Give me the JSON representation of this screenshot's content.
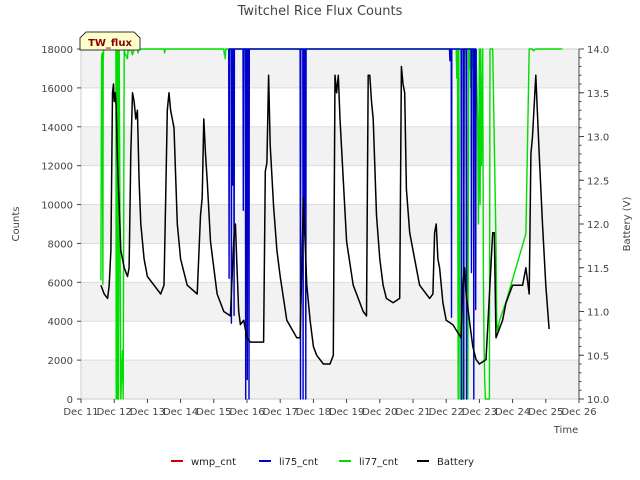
{
  "chart_data": {
    "type": "line",
    "title": "Twitchel Rice Flux Counts",
    "xlabel": "Time",
    "ylabel": "Counts",
    "y2label": "Battery (V)",
    "ylim": [
      0,
      18000
    ],
    "y2lim": [
      10.0,
      14.0
    ],
    "xlim": [
      11,
      26
    ],
    "x_ticks": [
      11,
      12,
      13,
      14,
      15,
      16,
      17,
      18,
      19,
      20,
      21,
      22,
      23,
      24,
      25,
      26
    ],
    "x_tick_labels": [
      "Dec 11",
      "Dec 12",
      "Dec 13",
      "Dec 14",
      "Dec 15",
      "Dec 16",
      "Dec 17",
      "Dec 18",
      "Dec 19",
      "Dec 20",
      "Dec 21",
      "Dec 22",
      "Dec 23",
      "Dec 24",
      "Dec 25",
      "Dec 26"
    ],
    "y_ticks": [
      0,
      2000,
      4000,
      6000,
      8000,
      10000,
      12000,
      14000,
      16000,
      18000
    ],
    "y2_ticks": [
      10.0,
      10.5,
      11.0,
      11.5,
      12.0,
      12.5,
      13.0,
      13.5,
      14.0
    ],
    "y2_tick_labels": [
      "10.0",
      "10.5",
      "11.0",
      "11.5",
      "12.0",
      "12.5",
      "13.0",
      "13.5",
      "14.0"
    ],
    "badge": "TW_flux",
    "legend_position": "bottom-center",
    "series": [
      {
        "name": "wmp_cnt",
        "color": "#cc0000",
        "axis": "left",
        "x": [],
        "y": []
      },
      {
        "name": "li75_cnt",
        "color": "#0000cc",
        "axis": "left",
        "x": [
          15.45,
          15.46,
          15.47,
          15.52,
          15.53,
          15.54,
          15.56,
          15.57,
          15.58,
          15.6,
          15.61,
          15.62,
          15.88,
          15.89,
          15.9,
          15.95,
          15.96,
          15.97,
          16.0,
          16.01,
          16.02,
          16.05,
          16.06,
          16.07,
          17.6,
          17.61,
          17.62,
          17.68,
          17.69,
          17.7,
          17.72,
          17.73,
          17.74,
          17.76,
          17.77,
          17.78,
          22.1,
          22.11,
          22.12,
          22.15,
          22.16,
          22.17,
          22.45,
          22.46,
          22.47,
          22.52,
          22.53,
          22.54,
          22.6,
          22.61,
          22.62,
          22.75,
          22.76,
          22.77,
          22.82,
          22.83,
          22.84,
          22.88,
          22.89,
          22.9
        ],
        "y": [
          18000,
          6200,
          18000,
          18000,
          3900,
          18000,
          18000,
          11000,
          18000,
          18000,
          4300,
          18000,
          18000,
          9700,
          18000,
          18000,
          0,
          18000,
          18000,
          1000,
          18000,
          18000,
          0,
          18000,
          18000,
          0,
          18000,
          18000,
          0,
          18000,
          18000,
          8500,
          18000,
          18000,
          0,
          18000,
          18000,
          17400,
          18000,
          18000,
          4200,
          18000,
          18000,
          0,
          18000,
          18000,
          0,
          18000,
          18000,
          0,
          18000,
          18000,
          6500,
          18000,
          18000,
          0,
          18000,
          18000,
          4600,
          18000
        ]
      },
      {
        "name": "li77_cnt",
        "color": "#00dd00",
        "axis": "left",
        "x": [
          11.6,
          11.61,
          11.62,
          11.64,
          11.66,
          11.67,
          11.68,
          11.7,
          11.72,
          12.0,
          12.05,
          12.06,
          12.08,
          12.1,
          12.12,
          12.13,
          12.15,
          12.2,
          12.25,
          12.27,
          12.3,
          12.32,
          12.4,
          12.42,
          12.44,
          12.5,
          12.55,
          12.6,
          12.7,
          12.72,
          12.73,
          12.8,
          13.5,
          13.52,
          13.53,
          13.6,
          15.3,
          15.32,
          15.33,
          15.34,
          15.36,
          15.4,
          22.3,
          22.32,
          22.34,
          22.36,
          22.38,
          22.42,
          22.5,
          22.55,
          22.6,
          22.65,
          22.68,
          22.7,
          22.72,
          22.74,
          22.76,
          22.78,
          22.8,
          22.85,
          22.88,
          22.9,
          22.95,
          22.97,
          23.0,
          23.02,
          23.04,
          23.06,
          23.1,
          23.12,
          23.14,
          23.16,
          23.18,
          23.3,
          23.32,
          23.4,
          23.5,
          23.52,
          23.55,
          23.6,
          23.8,
          24.4,
          24.5,
          24.6,
          24.62,
          24.7,
          24.8,
          25.5
        ],
        "y": [
          6100,
          13600,
          17600,
          17800,
          5900,
          17400,
          17900,
          18000,
          18000,
          18000,
          18000,
          0,
          18000,
          0,
          18000,
          0,
          18000,
          0,
          2500,
          0,
          18000,
          17800,
          17500,
          18000,
          17900,
          18000,
          17700,
          18000,
          18000,
          17800,
          18000,
          18000,
          18000,
          17800,
          18000,
          18000,
          18000,
          17700,
          17800,
          17500,
          18000,
          18000,
          18000,
          16500,
          18000,
          0,
          18000,
          0,
          0,
          18000,
          18000,
          0,
          18000,
          17000,
          18000,
          16000,
          18000,
          17000,
          18000,
          16000,
          18000,
          18000,
          14000,
          9000,
          18000,
          10000,
          18000,
          12000,
          18000,
          6000,
          3000,
          1000,
          0,
          0,
          18000,
          18000,
          8000,
          4000,
          3500,
          4000,
          5000,
          8500,
          18000,
          18000,
          17900,
          18000,
          18000,
          18000
        ]
      },
      {
        "name": "Battery",
        "color": "#000000",
        "axis": "right",
        "x": [
          11.6,
          11.7,
          11.8,
          11.85,
          11.9,
          11.95,
          11.98,
          12.0,
          12.03,
          12.06,
          12.1,
          12.15,
          12.2,
          12.3,
          12.4,
          12.45,
          12.5,
          12.55,
          12.6,
          12.65,
          12.7,
          12.75,
          12.8,
          12.9,
          13.0,
          13.2,
          13.4,
          13.5,
          13.55,
          13.6,
          13.65,
          13.7,
          13.75,
          13.8,
          13.9,
          14.0,
          14.2,
          14.5,
          14.6,
          14.65,
          14.7,
          14.75,
          14.8,
          14.9,
          15.0,
          15.1,
          15.3,
          15.5,
          15.6,
          15.65,
          15.7,
          15.75,
          15.8,
          15.9,
          16.0,
          16.1,
          16.2,
          16.5,
          16.55,
          16.6,
          16.65,
          16.7,
          16.8,
          16.9,
          17.0,
          17.2,
          17.5,
          17.6,
          17.65,
          17.7,
          17.75,
          17.8,
          17.9,
          18.0,
          18.1,
          18.3,
          18.5,
          18.6,
          18.65,
          18.7,
          18.75,
          18.8,
          18.9,
          19.0,
          19.2,
          19.5,
          19.6,
          19.65,
          19.7,
          19.75,
          19.8,
          19.9,
          20.0,
          20.1,
          20.2,
          20.4,
          20.6,
          20.65,
          20.7,
          20.75,
          20.8,
          20.9,
          21.0,
          21.2,
          21.5,
          21.6,
          21.65,
          21.7,
          21.75,
          21.8,
          21.9,
          22.0,
          22.2,
          22.45,
          22.5,
          22.55,
          22.6,
          22.7,
          22.8,
          22.9,
          23.0,
          23.2,
          23.4,
          23.45,
          23.5,
          23.6,
          23.7,
          23.8,
          24.0,
          24.3,
          24.4,
          24.5,
          24.55,
          24.6,
          24.7,
          24.8,
          24.9,
          25.0,
          25.1
        ],
        "y": [
          11.3,
          11.2,
          11.15,
          11.3,
          11.7,
          13.5,
          13.6,
          13.4,
          13.5,
          13.35,
          12.7,
          12.2,
          11.7,
          11.5,
          11.4,
          11.5,
          12.8,
          13.5,
          13.4,
          13.2,
          13.3,
          12.5,
          12.0,
          11.6,
          11.4,
          11.3,
          11.2,
          11.3,
          12.3,
          13.3,
          13.5,
          13.3,
          13.2,
          13.1,
          12.0,
          11.6,
          11.3,
          11.2,
          12.1,
          12.3,
          13.2,
          12.8,
          12.5,
          11.8,
          11.5,
          11.2,
          11.0,
          10.95,
          11.8,
          12.0,
          11.5,
          11.0,
          10.85,
          10.9,
          10.7,
          10.65,
          10.65,
          10.65,
          12.6,
          12.7,
          13.7,
          12.9,
          12.2,
          11.7,
          11.4,
          10.9,
          10.7,
          10.7,
          11.5,
          12.3,
          11.8,
          11.3,
          10.9,
          10.6,
          10.5,
          10.4,
          10.4,
          10.5,
          13.7,
          13.5,
          13.7,
          13.2,
          12.5,
          11.8,
          11.3,
          11.0,
          10.95,
          13.7,
          13.7,
          13.4,
          13.2,
          12.1,
          11.6,
          11.3,
          11.15,
          11.1,
          11.15,
          13.8,
          13.6,
          13.5,
          12.4,
          11.9,
          11.7,
          11.3,
          11.15,
          11.2,
          11.9,
          12.0,
          11.6,
          11.5,
          11.1,
          10.9,
          10.85,
          10.7,
          11.3,
          11.5,
          11.2,
          10.9,
          10.6,
          10.45,
          10.4,
          10.45,
          11.9,
          11.9,
          10.7,
          10.8,
          10.9,
          11.1,
          11.3,
          11.3,
          11.5,
          11.2,
          12.8,
          13.0,
          13.7,
          12.8,
          12.0,
          11.3,
          10.8
        ]
      }
    ]
  }
}
